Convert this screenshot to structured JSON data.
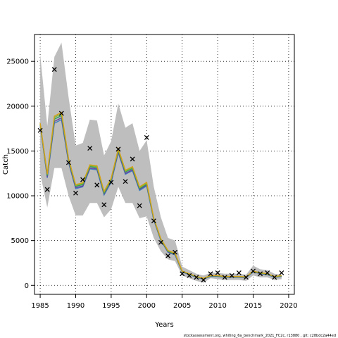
{
  "chart_data": {
    "type": "line",
    "title": "",
    "xlabel": "Years",
    "ylabel": "Catch",
    "xlim": [
      1984.2,
      2020.8
    ],
    "ylim": [
      -1000,
      28000
    ],
    "xticks": [
      1985,
      1990,
      1995,
      2000,
      2005,
      2010,
      2015,
      2020
    ],
    "yticks": [
      0,
      5000,
      10000,
      15000,
      20000,
      25000
    ],
    "grid": true,
    "x": [
      1985,
      1986,
      1987,
      1988,
      1989,
      1990,
      1991,
      1992,
      1993,
      1994,
      1995,
      1996,
      1997,
      1998,
      1999,
      2000,
      2001,
      2002,
      2003,
      2004,
      2005,
      2006,
      2007,
      2008,
      2009,
      2010,
      2011,
      2012,
      2013,
      2014,
      2015,
      2016,
      2017,
      2018,
      2019
    ],
    "band": {
      "name": "confidence band",
      "color": "#bebebe",
      "upper": [
        25800,
        17800,
        25500,
        27100,
        21000,
        15600,
        15900,
        18500,
        18400,
        14500,
        16100,
        20300,
        17600,
        18100,
        15000,
        16200,
        11000,
        7600,
        5300,
        5000,
        2100,
        1700,
        1300,
        1100,
        1400,
        1400,
        1300,
        1300,
        1300,
        1200,
        2200,
        1800,
        1700,
        1300,
        1200
      ],
      "lower": [
        12500,
        8700,
        13100,
        13100,
        10000,
        7800,
        7800,
        9200,
        9200,
        7600,
        8500,
        11000,
        9200,
        9200,
        7500,
        7700,
        5300,
        3800,
        2900,
        2700,
        1100,
        800,
        500,
        300,
        800,
        700,
        600,
        600,
        600,
        500,
        1100,
        900,
        900,
        600,
        700
      ]
    },
    "series": [
      {
        "color": "#3a7fbf",
        "values": [
          17900,
          12000,
          18100,
          18500,
          13700,
          10800,
          11000,
          13000,
          12900,
          10100,
          11500,
          14800,
          12400,
          12800,
          10600,
          11100,
          7300,
          5000,
          3700,
          3400,
          1500,
          1200,
          900,
          700,
          1000,
          1000,
          900,
          900,
          900,
          850,
          1500,
          1300,
          1200,
          900,
          1000
        ]
      },
      {
        "color": "#6b3fa0",
        "values": [
          17950,
          12100,
          18300,
          18700,
          13800,
          10900,
          11100,
          13100,
          13000,
          10200,
          11600,
          14900,
          12500,
          12900,
          10700,
          11200,
          7350,
          5050,
          3750,
          3450,
          1520,
          1220,
          920,
          720,
          1020,
          1020,
          920,
          920,
          920,
          870,
          1520,
          1320,
          1220,
          920,
          1020
        ]
      },
      {
        "color": "#2e9b5a",
        "values": [
          18000,
          12250,
          18550,
          18950,
          13950,
          11050,
          11250,
          13250,
          13150,
          10300,
          11750,
          15050,
          12650,
          13050,
          10800,
          11300,
          7400,
          5100,
          3800,
          3500,
          1550,
          1250,
          950,
          750,
          1050,
          1050,
          950,
          950,
          950,
          900,
          1550,
          1350,
          1250,
          950,
          1050
        ]
      },
      {
        "color": "#7cb83a",
        "values": [
          18050,
          12350,
          18750,
          19150,
          14050,
          11150,
          11350,
          13350,
          13250,
          10400,
          11850,
          15150,
          12750,
          13150,
          10900,
          11400,
          7450,
          5150,
          3850,
          3550,
          1580,
          1280,
          980,
          780,
          1080,
          1080,
          980,
          980,
          980,
          930,
          1580,
          1380,
          1280,
          980,
          1080
        ]
      },
      {
        "color": "#d4a017",
        "values": [
          18100,
          12450,
          18900,
          19300,
          14150,
          11250,
          11450,
          13450,
          13350,
          10500,
          11950,
          15250,
          12850,
          13250,
          11000,
          11500,
          7500,
          5200,
          3900,
          3600,
          1600,
          1300,
          1000,
          800,
          1100,
          1100,
          1000,
          1000,
          1000,
          950,
          1600,
          1400,
          1300,
          1000,
          1100
        ]
      }
    ],
    "observed": {
      "marker": "x",
      "color": "#000000",
      "values": [
        17300,
        10700,
        24100,
        19200,
        13700,
        10300,
        11800,
        15300,
        11200,
        9000,
        11500,
        15200,
        11600,
        14100,
        8900,
        16500,
        7200,
        4800,
        3300,
        3700,
        1300,
        1100,
        900,
        600,
        1300,
        1400,
        900,
        1100,
        1400,
        900,
        1600,
        1300,
        1400,
        900,
        1400
      ]
    }
  },
  "footer": "stockassessment.org, whiting_6a_benchmark_2021_FC2c, r13880 , git: c28bdc2a44ed"
}
